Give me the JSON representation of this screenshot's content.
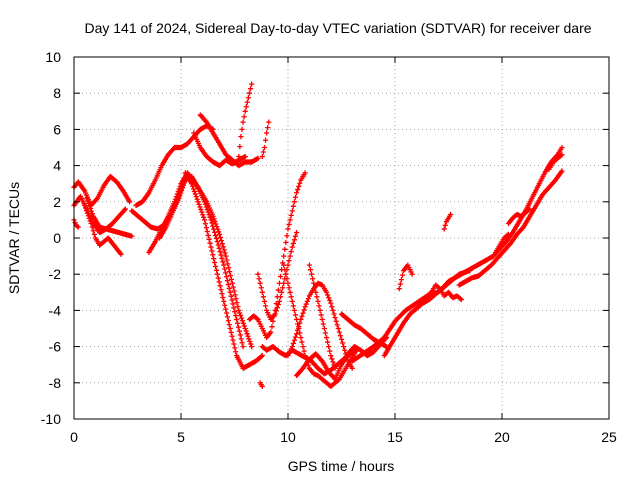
{
  "chart_data": {
    "type": "scatter",
    "title": "Day 141 of 2024, Sidereal Day-to-day VTEC variation (SDTVAR) for receiver dare",
    "xlabel": "GPS time / hours",
    "ylabel": "SDTVAR / TECUs",
    "xlim": [
      0,
      25
    ],
    "ylim": [
      -10,
      10
    ],
    "xticks": [
      0,
      5,
      10,
      15,
      20,
      25
    ],
    "yticks": [
      -10,
      -8,
      -6,
      -4,
      -2,
      0,
      2,
      4,
      6,
      8,
      10
    ],
    "grid": true,
    "marker": "+",
    "color": "#ff0000",
    "series": [
      {
        "name": "arc-1",
        "x": [
          0.0,
          0.2,
          0.5,
          0.8,
          1.1,
          1.4,
          1.7,
          2.0,
          2.3,
          2.6
        ],
        "y": [
          2.8,
          3.1,
          2.6,
          1.8,
          2.2,
          2.9,
          3.4,
          3.1,
          2.6,
          2.0
        ]
      },
      {
        "name": "arc-2",
        "x": [
          0.0,
          0.3,
          0.6,
          0.9,
          1.2,
          1.5,
          1.8,
          2.1,
          2.4
        ],
        "y": [
          1.8,
          2.3,
          1.6,
          0.8,
          0.3,
          0.5,
          0.8,
          1.2,
          1.6
        ]
      },
      {
        "name": "arc-3",
        "x": [
          0.5,
          0.8,
          1.0,
          1.2,
          1.4,
          1.6,
          1.8,
          2.0,
          2.2
        ],
        "y": [
          1.8,
          0.8,
          0.0,
          -0.4,
          -0.2,
          0.0,
          -0.3,
          -0.6,
          -0.9
        ]
      },
      {
        "name": "arc-4",
        "x": [
          0.6,
          0.9,
          1.2,
          1.5,
          1.8,
          2.1,
          2.4,
          2.7
        ],
        "y": [
          2.2,
          1.2,
          0.6,
          0.5,
          0.4,
          0.3,
          0.2,
          0.1
        ]
      },
      {
        "name": "arc-5",
        "x": [
          0.0,
          0.1,
          0.2
        ],
        "y": [
          1.0,
          0.7,
          0.6
        ]
      },
      {
        "name": "arc-6",
        "x": [
          2.7,
          3.0,
          3.3,
          3.6,
          3.9,
          4.2,
          4.5,
          4.8,
          5.1
        ],
        "y": [
          1.5,
          1.2,
          0.9,
          0.6,
          0.5,
          0.7,
          1.3,
          2.0,
          3.0
        ]
      },
      {
        "name": "arc-7",
        "x": [
          2.9,
          3.2,
          3.5,
          3.8,
          4.1,
          4.4,
          4.7,
          5.0,
          5.3,
          5.6,
          5.9,
          6.2,
          6.5
        ],
        "y": [
          1.8,
          2.0,
          2.5,
          3.2,
          4.0,
          4.6,
          5.0,
          5.0,
          5.2,
          5.6,
          6.0,
          6.2,
          6.0
        ]
      },
      {
        "name": "arc-8",
        "x": [
          3.5,
          3.8,
          4.1,
          4.4,
          4.7,
          5.0,
          5.3,
          5.6,
          5.9,
          6.2,
          6.5,
          6.8,
          7.1,
          7.4,
          7.7,
          8.0,
          8.3
        ],
        "y": [
          -0.8,
          -0.2,
          0.5,
          1.2,
          2.0,
          3.0,
          3.6,
          3.1,
          2.6,
          2.0,
          1.2,
          0.2,
          -1.0,
          -2.5,
          -4.0,
          -5.0,
          -6.0
        ]
      },
      {
        "name": "arc-9",
        "x": [
          4.0,
          4.3,
          4.6,
          4.9,
          5.2,
          5.5,
          5.8,
          6.1,
          6.4,
          6.7,
          7.0,
          7.3,
          7.6,
          7.9
        ],
        "y": [
          0.0,
          0.6,
          1.4,
          2.2,
          3.2,
          3.4,
          2.8,
          2.0,
          1.0,
          -0.2,
          -1.5,
          -3.0,
          -4.5,
          -6.0
        ]
      },
      {
        "name": "arc-10",
        "x": [
          5.2,
          5.5,
          5.8,
          6.1,
          6.4,
          6.7,
          7.0,
          7.3,
          7.6,
          7.9,
          8.2,
          8.5,
          8.8
        ],
        "y": [
          3.6,
          3.0,
          2.0,
          1.0,
          -0.5,
          -2.0,
          -3.5,
          -5.0,
          -6.5,
          -7.2,
          -7.0,
          -6.8,
          -6.5
        ]
      },
      {
        "name": "arc-11",
        "x": [
          5.6,
          5.9,
          6.2,
          6.5,
          6.8,
          7.1,
          7.4,
          7.7,
          8.0
        ],
        "y": [
          5.8,
          5.0,
          4.5,
          4.2,
          4.0,
          4.3,
          4.1,
          4.3,
          4.5
        ]
      },
      {
        "name": "arc-12",
        "x": [
          5.9,
          6.2,
          6.5,
          6.8,
          7.1,
          7.4,
          7.7,
          8.0,
          8.3,
          8.6
        ],
        "y": [
          6.8,
          6.4,
          5.8,
          5.2,
          4.6,
          4.3,
          4.0,
          4.2,
          4.2,
          4.4
        ]
      },
      {
        "name": "arc-13",
        "x": [
          7.7,
          7.8,
          7.9,
          8.0,
          8.1,
          8.2,
          8.3
        ],
        "y": [
          4.5,
          5.6,
          6.4,
          7.0,
          7.5,
          8.0,
          8.5
        ]
      },
      {
        "name": "arc-14",
        "x": [
          8.2,
          8.4,
          8.6,
          8.8,
          9.0,
          9.2,
          9.4,
          9.6,
          9.8,
          10.0,
          10.2,
          10.4,
          10.6,
          10.8
        ],
        "y": [
          -4.5,
          -4.3,
          -4.5,
          -5.0,
          -5.5,
          -5.2,
          -4.0,
          -2.5,
          -1.0,
          0.5,
          1.5,
          2.5,
          3.2,
          3.6
        ]
      },
      {
        "name": "arc-15",
        "x": [
          8.8,
          8.9,
          9.0,
          9.1
        ],
        "y": [
          4.5,
          5.0,
          5.8,
          6.4
        ]
      },
      {
        "name": "arc-16",
        "x": [
          8.6,
          8.8,
          9.0,
          9.2,
          9.4,
          9.6,
          9.8,
          10.0,
          10.2,
          10.4
        ],
        "y": [
          -2.0,
          -3.0,
          -4.0,
          -4.5,
          -4.2,
          -3.5,
          -2.5,
          -1.5,
          -0.5,
          0.3
        ]
      },
      {
        "name": "arc-17",
        "x": [
          8.8,
          9.0,
          9.3,
          9.6,
          9.9,
          10.2,
          10.5,
          10.8,
          11.1,
          11.4,
          11.7,
          12.0,
          12.3,
          12.6,
          12.9,
          13.2
        ],
        "y": [
          -6.0,
          -6.2,
          -6.0,
          -6.3,
          -6.5,
          -6.2,
          -6.4,
          -6.6,
          -6.8,
          -7.2,
          -7.5,
          -7.3,
          -7.0,
          -6.7,
          -6.4,
          -6.2
        ]
      },
      {
        "name": "arc-18",
        "x": [
          8.7,
          8.8
        ],
        "y": [
          -8.0,
          -8.2
        ]
      },
      {
        "name": "arc-19",
        "x": [
          9.8,
          10.0,
          10.2,
          10.4,
          10.6,
          10.8,
          11.0,
          11.2,
          11.4,
          11.6,
          11.8,
          12.0,
          12.2,
          12.4,
          12.6,
          12.8,
          13.0,
          13.2
        ],
        "y": [
          -1.5,
          -2.5,
          -3.5,
          -4.5,
          -5.5,
          -6.5,
          -7.2,
          -7.5,
          -7.6,
          -7.8,
          -8.0,
          -8.2,
          -8.0,
          -7.8,
          -7.4,
          -7.0,
          -6.6,
          -6.2
        ]
      },
      {
        "name": "arc-20",
        "x": [
          10.0,
          10.2,
          10.4,
          10.6,
          10.8,
          11.0,
          11.2,
          11.4,
          11.6,
          11.8,
          12.0,
          12.2,
          12.4,
          12.6,
          12.8,
          13.0
        ],
        "y": [
          -6.5,
          -6.0,
          -5.3,
          -4.5,
          -3.8,
          -3.2,
          -2.8,
          -2.5,
          -2.6,
          -3.0,
          -3.6,
          -4.4,
          -5.2,
          -6.0,
          -6.8,
          -7.2
        ]
      },
      {
        "name": "arc-21",
        "x": [
          10.4,
          10.7,
          11.0,
          11.3,
          11.6,
          11.9,
          12.2,
          12.5,
          12.8,
          13.1,
          13.4,
          13.7,
          14.0,
          14.3,
          14.6
        ],
        "y": [
          -7.6,
          -7.2,
          -6.7,
          -6.4,
          -6.8,
          -7.4,
          -7.8,
          -7.0,
          -6.4,
          -6.0,
          -6.2,
          -6.5,
          -6.3,
          -5.9,
          -5.5
        ]
      },
      {
        "name": "arc-22",
        "x": [
          11.0,
          11.2,
          11.4,
          11.6,
          11.8,
          12.0,
          12.2
        ],
        "y": [
          -1.5,
          -2.5,
          -3.5,
          -4.5,
          -5.5,
          -6.5,
          -7.2
        ]
      },
      {
        "name": "arc-23",
        "x": [
          12.5,
          12.8,
          13.1,
          13.4,
          13.7,
          14.0,
          14.3,
          14.6
        ],
        "y": [
          -4.2,
          -4.5,
          -4.8,
          -5.0,
          -5.3,
          -5.6,
          -5.8,
          -6.0
        ]
      },
      {
        "name": "arc-24",
        "x": [
          13.0,
          13.5,
          14.0,
          14.5,
          15.0,
          15.5,
          16.0,
          16.5,
          17.0,
          17.5,
          18.0,
          18.5
        ],
        "y": [
          -6.8,
          -6.4,
          -6.0,
          -5.5,
          -4.6,
          -4.0,
          -3.6,
          -3.2,
          -3.0,
          -2.5,
          -2.0,
          -1.8
        ]
      },
      {
        "name": "arc-25",
        "x": [
          14.5,
          14.8,
          15.1,
          15.4,
          15.7,
          16.0,
          16.3,
          16.6,
          16.9,
          17.2,
          17.5,
          17.8,
          18.1,
          18.4,
          18.7,
          19.0,
          19.3,
          19.6,
          19.9,
          20.2,
          20.5,
          20.8,
          21.1,
          21.4,
          21.7,
          22.0,
          22.3,
          22.6,
          22.8
        ],
        "y": [
          -6.5,
          -5.9,
          -5.3,
          -4.7,
          -4.2,
          -3.9,
          -3.6,
          -3.4,
          -3.1,
          -2.8,
          -2.4,
          -2.2,
          -2.0,
          -1.8,
          -1.6,
          -1.4,
          -1.2,
          -1.0,
          -0.6,
          -0.2,
          0.3,
          0.9,
          1.5,
          2.2,
          2.9,
          3.6,
          4.2,
          4.6,
          5.0
        ]
      },
      {
        "name": "arc-26",
        "x": [
          15.2,
          15.4,
          15.6,
          15.8
        ],
        "y": [
          -2.8,
          -1.8,
          -1.5,
          -2.0
        ]
      },
      {
        "name": "arc-27",
        "x": [
          16.5,
          16.7,
          16.9,
          17.1,
          17.3,
          17.5,
          17.7,
          17.9,
          18.1
        ],
        "y": [
          -3.2,
          -3.0,
          -2.6,
          -2.8,
          -3.2,
          -3.0,
          -3.3,
          -3.2,
          -3.4
        ]
      },
      {
        "name": "arc-28",
        "x": [
          17.3,
          17.4,
          17.5,
          17.6
        ],
        "y": [
          0.5,
          0.9,
          1.1,
          1.3
        ]
      },
      {
        "name": "arc-29",
        "x": [
          18.0,
          18.3,
          18.6,
          18.9,
          19.2,
          19.5,
          19.8,
          20.1,
          20.4,
          20.7,
          21.0,
          21.3,
          21.6,
          21.9,
          22.2,
          22.5,
          22.8
        ],
        "y": [
          -2.6,
          -2.4,
          -2.2,
          -2.1,
          -1.8,
          -1.5,
          -1.1,
          -0.7,
          -0.3,
          0.2,
          0.6,
          1.2,
          1.8,
          2.4,
          2.8,
          3.2,
          3.7
        ]
      },
      {
        "name": "arc-30",
        "x": [
          19.7,
          19.9,
          20.1,
          20.3
        ],
        "y": [
          -0.8,
          -0.4,
          0.0,
          0.2
        ]
      },
      {
        "name": "arc-31",
        "x": [
          20.3,
          20.5,
          20.7,
          20.9,
          21.1,
          21.3
        ],
        "y": [
          0.8,
          1.1,
          1.3,
          1.2,
          1.4,
          1.6
        ]
      },
      {
        "name": "arc-32",
        "x": [
          22.2,
          22.4,
          22.6,
          22.8
        ],
        "y": [
          3.8,
          4.2,
          4.4,
          4.6
        ]
      }
    ]
  }
}
